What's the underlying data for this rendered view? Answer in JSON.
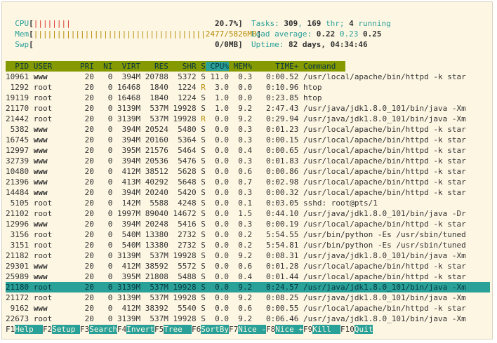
{
  "meters": {
    "cpu_label": "CPU",
    "cpu_bar": "||||||||",
    "cpu_value": "20.7%",
    "mem_label": "Mem",
    "mem_bar": "|||||||||||||||||||||||||||||||||||||",
    "mem_value": "2477/5826MB",
    "swp_label": "Swp",
    "swp_value": "0/0MB"
  },
  "summary": {
    "tasks_label": "Tasks:",
    "tasks_total": "309",
    "thr": "169",
    "thr_label": "thr;",
    "running": "4",
    "running_label": "running",
    "load_label": "Load average:",
    "load1": "0.22",
    "load5": "0.23",
    "load15": "0.25",
    "uptime_label": "Uptime:",
    "uptime_value": "82 days, 04:34:46"
  },
  "columns": [
    "PID",
    "USER",
    "PRI",
    "NI",
    "VIRT",
    "RES",
    "SHR",
    "S",
    "CPU%",
    "MEM%",
    "TIME+",
    "Command"
  ],
  "processes": [
    {
      "pid": "10961",
      "user": "www",
      "pri": "20",
      "ni": "0",
      "virt": "394M",
      "res": "20788",
      "shr": "5372",
      "s": "S",
      "cpu": "11.0",
      "mem": "0.3",
      "time": "0:00.52",
      "cmd": "/usr/local/apache/bin/httpd -k star"
    },
    {
      "pid": "1292",
      "user": "root",
      "pri": "20",
      "ni": "0",
      "virt": "16468",
      "res": "1840",
      "shr": "1224",
      "s": "R",
      "cpu": "3.0",
      "mem": "0.0",
      "time": "0:10.96",
      "cmd": "htop"
    },
    {
      "pid": "19119",
      "user": "root",
      "pri": "20",
      "ni": "0",
      "virt": "16468",
      "res": "1840",
      "shr": "1224",
      "s": "S",
      "cpu": "1.0",
      "mem": "0.0",
      "time": "0:23.85",
      "cmd": "htop"
    },
    {
      "pid": "21170",
      "user": "root",
      "pri": "20",
      "ni": "0",
      "virt": "3139M",
      "res": "537M",
      "shr": "19928",
      "s": "S",
      "cpu": "1.0",
      "mem": "9.2",
      "time": "2:47.43",
      "cmd": "/usr/java/jdk1.8.0_101/bin/java -Xm"
    },
    {
      "pid": "21442",
      "user": "root",
      "pri": "20",
      "ni": "0",
      "virt": "3139M",
      "res": "537M",
      "shr": "19928",
      "s": "R",
      "cpu": "0.0",
      "mem": "9.2",
      "time": "0:29.94",
      "cmd": "/usr/java/jdk1.8.0_101/bin/java -Xm"
    },
    {
      "pid": "5382",
      "user": "www",
      "pri": "20",
      "ni": "0",
      "virt": "394M",
      "res": "20524",
      "shr": "5480",
      "s": "S",
      "cpu": "0.0",
      "mem": "0.3",
      "time": "0:01.23",
      "cmd": "/usr/local/apache/bin/httpd -k star"
    },
    {
      "pid": "16745",
      "user": "www",
      "pri": "20",
      "ni": "0",
      "virt": "394M",
      "res": "20160",
      "shr": "5364",
      "s": "S",
      "cpu": "0.0",
      "mem": "0.3",
      "time": "0:00.15",
      "cmd": "/usr/local/apache/bin/httpd -k star"
    },
    {
      "pid": "12997",
      "user": "www",
      "pri": "20",
      "ni": "0",
      "virt": "395M",
      "res": "21576",
      "shr": "5464",
      "s": "S",
      "cpu": "0.0",
      "mem": "0.4",
      "time": "0:00.65",
      "cmd": "/usr/local/apache/bin/httpd -k star"
    },
    {
      "pid": "32739",
      "user": "www",
      "pri": "20",
      "ni": "0",
      "virt": "394M",
      "res": "20536",
      "shr": "5476",
      "s": "S",
      "cpu": "0.0",
      "mem": "0.3",
      "time": "0:01.83",
      "cmd": "/usr/local/apache/bin/httpd -k star"
    },
    {
      "pid": "10480",
      "user": "www",
      "pri": "20",
      "ni": "0",
      "virt": "412M",
      "res": "38512",
      "shr": "5628",
      "s": "S",
      "cpu": "0.0",
      "mem": "0.6",
      "time": "0:00.86",
      "cmd": "/usr/local/apache/bin/httpd -k star"
    },
    {
      "pid": "21396",
      "user": "www",
      "pri": "20",
      "ni": "0",
      "virt": "413M",
      "res": "40292",
      "shr": "5648",
      "s": "S",
      "cpu": "0.0",
      "mem": "0.7",
      "time": "0:02.98",
      "cmd": "/usr/local/apache/bin/httpd -k star"
    },
    {
      "pid": "14484",
      "user": "www",
      "pri": "20",
      "ni": "0",
      "virt": "394M",
      "res": "20240",
      "shr": "5420",
      "s": "S",
      "cpu": "0.0",
      "mem": "0.3",
      "time": "0:00.32",
      "cmd": "/usr/local/apache/bin/httpd -k star"
    },
    {
      "pid": "5105",
      "user": "root",
      "pri": "20",
      "ni": "0",
      "virt": "142M",
      "res": "5588",
      "shr": "4248",
      "s": "S",
      "cpu": "0.0",
      "mem": "0.1",
      "time": "0:03.05",
      "cmd": "sshd: root@pts/1"
    },
    {
      "pid": "21102",
      "user": "root",
      "pri": "20",
      "ni": "0",
      "virt": "1997M",
      "res": "89040",
      "shr": "14672",
      "s": "S",
      "cpu": "0.0",
      "mem": "1.5",
      "time": "0:44.10",
      "cmd": "/usr/java/jdk1.8.0_101/bin/java -Dr"
    },
    {
      "pid": "12996",
      "user": "www",
      "pri": "20",
      "ni": "0",
      "virt": "394M",
      "res": "20248",
      "shr": "5416",
      "s": "S",
      "cpu": "0.0",
      "mem": "0.3",
      "time": "0:00.19",
      "cmd": "/usr/local/apache/bin/httpd -k star"
    },
    {
      "pid": "3156",
      "user": "root",
      "pri": "20",
      "ni": "0",
      "virt": "540M",
      "res": "13380",
      "shr": "2732",
      "s": "S",
      "cpu": "0.0",
      "mem": "0.2",
      "time": "5:54.55",
      "cmd": "/usr/bin/python -Es /usr/sbin/tuned"
    },
    {
      "pid": "3151",
      "user": "root",
      "pri": "20",
      "ni": "0",
      "virt": "540M",
      "res": "13380",
      "shr": "2732",
      "s": "S",
      "cpu": "0.0",
      "mem": "0.2",
      "time": "5:54.81",
      "cmd": "/usr/bin/python -Es /usr/sbin/tuned"
    },
    {
      "pid": "21182",
      "user": "root",
      "pri": "20",
      "ni": "0",
      "virt": "3139M",
      "res": "537M",
      "shr": "19928",
      "s": "S",
      "cpu": "0.0",
      "mem": "9.2",
      "time": "0:08.31",
      "cmd": "/usr/java/jdk1.8.0_101/bin/java -Xm"
    },
    {
      "pid": "29301",
      "user": "www",
      "pri": "20",
      "ni": "0",
      "virt": "412M",
      "res": "38592",
      "shr": "5572",
      "s": "S",
      "cpu": "0.0",
      "mem": "0.6",
      "time": "0:01.28",
      "cmd": "/usr/local/apache/bin/httpd -k star"
    },
    {
      "pid": "25989",
      "user": "www",
      "pri": "20",
      "ni": "0",
      "virt": "395M",
      "res": "21808",
      "shr": "5488",
      "s": "S",
      "cpu": "0.0",
      "mem": "0.4",
      "time": "0:01.44",
      "cmd": "/usr/local/apache/bin/httpd -k star"
    },
    {
      "pid": "21180",
      "user": "root",
      "pri": "20",
      "ni": "0",
      "virt": "3139M",
      "res": "537M",
      "shr": "19928",
      "s": "S",
      "cpu": "0.0",
      "mem": "9.2",
      "time": "0:24.57",
      "cmd": "/usr/java/jdk1.8.0_101/bin/java -Xm"
    },
    {
      "pid": "21172",
      "user": "root",
      "pri": "20",
      "ni": "0",
      "virt": "3139M",
      "res": "537M",
      "shr": "19928",
      "s": "S",
      "cpu": "0.0",
      "mem": "9.2",
      "time": "0:08.25",
      "cmd": "/usr/java/jdk1.8.0_101/bin/java -Xm"
    },
    {
      "pid": "9162",
      "user": "www",
      "pri": "20",
      "ni": "0",
      "virt": "412M",
      "res": "38392",
      "shr": "5540",
      "s": "S",
      "cpu": "0.0",
      "mem": "0.6",
      "time": "0:00.55",
      "cmd": "/usr/local/apache/bin/httpd -k star"
    },
    {
      "pid": "22673",
      "user": "root",
      "pri": "20",
      "ni": "0",
      "virt": "3139M",
      "res": "537M",
      "shr": "19928",
      "s": "S",
      "cpu": "0.0",
      "mem": "9.2",
      "time": "0:06.46",
      "cmd": "/usr/java/jdk1.8.0_101/bin/java -Xm"
    }
  ],
  "selected_index": 20,
  "footer": [
    {
      "key": "F1",
      "label": "Help  "
    },
    {
      "key": "F2",
      "label": "Setup "
    },
    {
      "key": "F3",
      "label": "Search"
    },
    {
      "key": "F4",
      "label": "Invert"
    },
    {
      "key": "F5",
      "label": "Tree  "
    },
    {
      "key": "F6",
      "label": "SortBy"
    },
    {
      "key": "F7",
      "label": "Nice -"
    },
    {
      "key": "F8",
      "label": "Nice +"
    },
    {
      "key": "F9",
      "label": "Kill  "
    },
    {
      "key": "F10",
      "label": "Quit"
    }
  ],
  "colors": {
    "background": "#fdf6e3",
    "header_bar": "#859900",
    "accent_teal": "#2aa198",
    "bar_yellow": "#b58900"
  }
}
